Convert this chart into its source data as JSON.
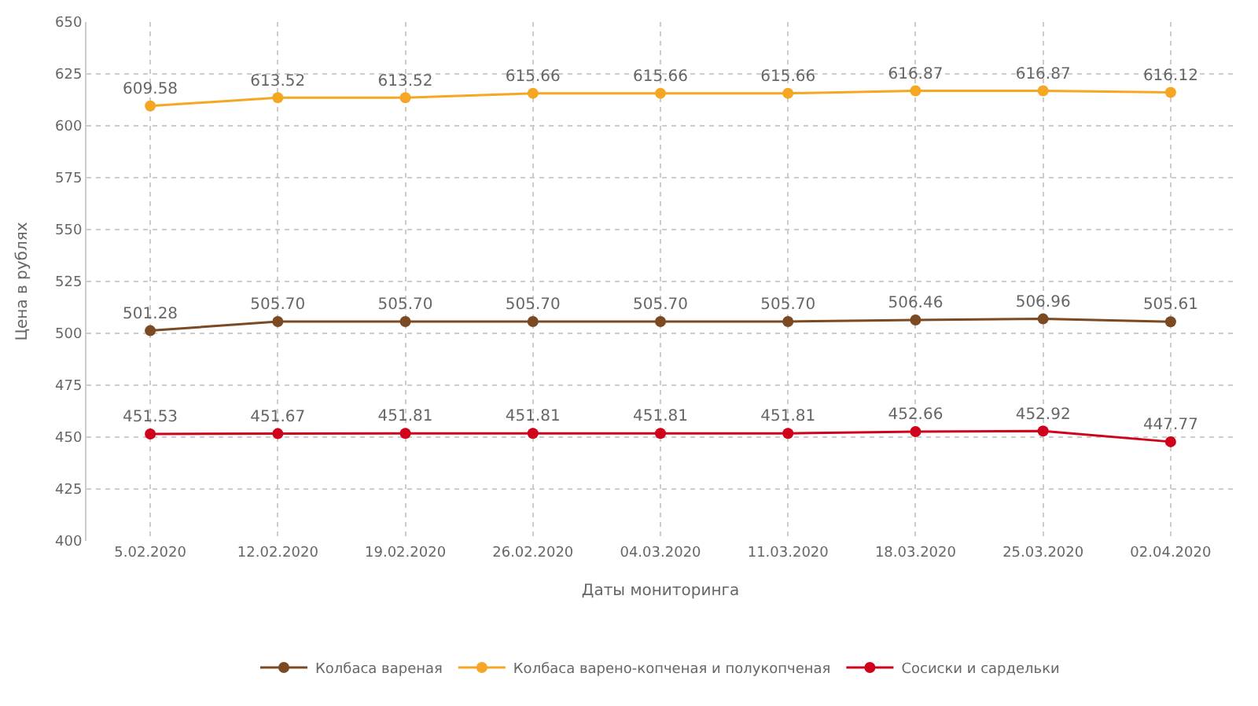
{
  "chart_data": {
    "type": "line",
    "xlabel": "Даты мониторинга",
    "ylabel": "Цена в рублях",
    "categories": [
      "5.02.2020",
      "12.02.2020",
      "19.02.2020",
      "26.02.2020",
      "04.03.2020",
      "11.03.2020",
      "18.03.2020",
      "25.03.2020",
      "02.04.2020"
    ],
    "series": [
      {
        "name": "Колбаса вареная",
        "color": "#7b4a23",
        "values": [
          501.28,
          505.7,
          505.7,
          505.7,
          505.7,
          505.7,
          506.46,
          506.96,
          505.61
        ],
        "value_labels": [
          "501.28",
          "505.70",
          "505.70",
          "505.70",
          "505.70",
          "505.70",
          "506.46",
          "506.96",
          "505.61"
        ]
      },
      {
        "name": "Колбаса варено-копченая и полукопченая",
        "color": "#f5a623",
        "values": [
          609.58,
          613.52,
          613.52,
          615.66,
          615.66,
          615.66,
          616.87,
          616.87,
          616.12
        ],
        "value_labels": [
          "609.58",
          "613.52",
          "613.52",
          "615.66",
          "615.66",
          "615.66",
          "616.87",
          "616.87",
          "616.12"
        ]
      },
      {
        "name": "Сосиски и сардельки",
        "color": "#d0021b",
        "values": [
          451.53,
          451.67,
          451.81,
          451.81,
          451.81,
          451.81,
          452.66,
          452.92,
          447.77
        ],
        "value_labels": [
          "451.53",
          "451.67",
          "451.81",
          "451.81",
          "451.81",
          "451.81",
          "452.66",
          "452.92",
          "447.77"
        ]
      }
    ],
    "ylim": [
      400,
      650
    ],
    "yticks": [
      400,
      425,
      450,
      475,
      500,
      525,
      550,
      575,
      600,
      625,
      650
    ],
    "grid": true,
    "legend": "bottom",
    "marker": "circle",
    "line_style": "solid"
  }
}
